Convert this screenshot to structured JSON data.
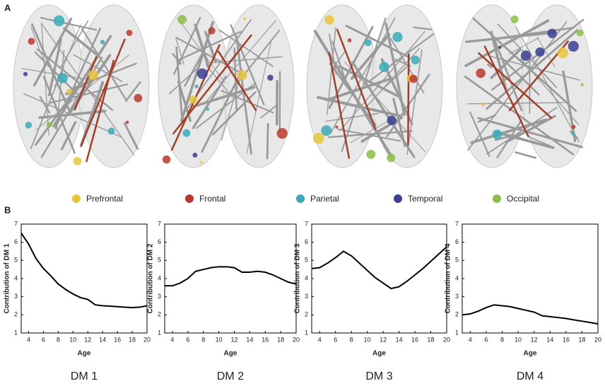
{
  "panel_labels": [
    "A",
    "B"
  ],
  "region_legend": [
    {
      "name": "Prefrontal",
      "color": "#e8c53a"
    },
    {
      "name": "Frontal",
      "color": "#b83a2e"
    },
    {
      "name": "Parietal",
      "color": "#3aaab8"
    },
    {
      "name": "Temporal",
      "color": "#3a3f8f"
    },
    {
      "name": "Occipital",
      "color": "#8cbd4a"
    }
  ],
  "chart_data": [
    {
      "type": "line",
      "caption": "DM 1",
      "xlabel": "Age",
      "ylabel": "Contribution of DM 1",
      "x": [
        3,
        4,
        5,
        6,
        7,
        8,
        9,
        10,
        11,
        12,
        13,
        14,
        15,
        16,
        17,
        18,
        19,
        20
      ],
      "values": [
        6.5,
        5.9,
        5.1,
        4.55,
        4.15,
        3.7,
        3.4,
        3.15,
        2.95,
        2.85,
        2.55,
        2.5,
        2.48,
        2.45,
        2.42,
        2.4,
        2.42,
        2.5
      ],
      "color": "#000000",
      "xlim": [
        3,
        20
      ],
      "xticks": [
        4,
        6,
        8,
        10,
        12,
        14,
        16,
        18,
        20
      ],
      "ylim": [
        1,
        7
      ],
      "yticks": [
        1,
        2,
        3,
        4,
        5,
        6,
        7
      ]
    },
    {
      "type": "line",
      "caption": "DM 2",
      "xlabel": "Age",
      "ylabel": "Contribution of DM 2",
      "x": [
        3,
        4,
        5,
        6,
        7,
        8,
        9,
        10,
        11,
        12,
        13,
        14,
        15,
        16,
        17,
        18,
        19,
        20
      ],
      "values": [
        3.6,
        3.6,
        3.75,
        4.0,
        4.4,
        4.5,
        4.6,
        4.65,
        4.65,
        4.6,
        4.35,
        4.35,
        4.4,
        4.35,
        4.2,
        4.0,
        3.8,
        3.7
      ],
      "color": "#000000",
      "xlim": [
        3,
        20
      ],
      "xticks": [
        4,
        6,
        8,
        10,
        12,
        14,
        16,
        18,
        20
      ],
      "ylim": [
        1,
        7
      ],
      "yticks": [
        1,
        2,
        3,
        4,
        5,
        6,
        7
      ]
    },
    {
      "type": "line",
      "caption": "DM 3",
      "xlabel": "Age",
      "ylabel": "Contribution of DM 3",
      "x": [
        3,
        4,
        5,
        6,
        7,
        8,
        9,
        10,
        11,
        12,
        13,
        14,
        15,
        16,
        17,
        18,
        19,
        20
      ],
      "values": [
        4.55,
        4.6,
        4.85,
        5.15,
        5.5,
        5.25,
        4.85,
        4.45,
        4.05,
        3.75,
        3.45,
        3.55,
        3.85,
        4.2,
        4.55,
        4.95,
        5.35,
        5.75
      ],
      "color": "#000000",
      "xlim": [
        3,
        20
      ],
      "xticks": [
        4,
        6,
        8,
        10,
        12,
        14,
        16,
        18,
        20
      ],
      "ylim": [
        1,
        7
      ],
      "yticks": [
        1,
        2,
        3,
        4,
        5,
        6,
        7
      ]
    },
    {
      "type": "line",
      "caption": "DM 4",
      "xlabel": "Age",
      "ylabel": "Contribution of DM 4",
      "x": [
        3,
        4,
        5,
        6,
        7,
        8,
        9,
        10,
        11,
        12,
        13,
        14,
        15,
        16,
        17,
        18,
        19,
        20
      ],
      "values": [
        2.0,
        2.05,
        2.2,
        2.4,
        2.55,
        2.5,
        2.45,
        2.35,
        2.25,
        2.15,
        1.95,
        1.9,
        1.85,
        1.8,
        1.72,
        1.65,
        1.58,
        1.5
      ],
      "color": "#000000",
      "xlim": [
        3,
        20
      ],
      "xticks": [
        4,
        6,
        8,
        10,
        12,
        14,
        16,
        18,
        20
      ],
      "ylim": [
        1,
        7
      ],
      "yticks": [
        1,
        2,
        3,
        4,
        5,
        6,
        7
      ]
    }
  ]
}
